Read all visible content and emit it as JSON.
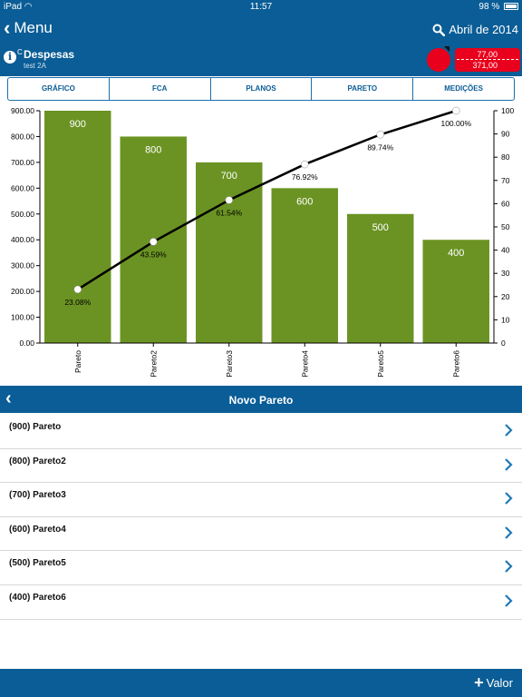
{
  "statusbar": {
    "device": "iPad",
    "time": "11:57",
    "battery": "98 %",
    "battery_level": 0.98
  },
  "nav": {
    "back_label": "Menu",
    "period": "Abril de 2014"
  },
  "header": {
    "code": "C",
    "title": "Despesas",
    "subtitle": "test 2A",
    "value_top": "77,00",
    "value_bottom": "371,00"
  },
  "tabs": [
    {
      "label": "GRÁFICO",
      "active": false
    },
    {
      "label": "FCA",
      "active": false
    },
    {
      "label": "PLANOS",
      "active": false
    },
    {
      "label": "PARETO",
      "active": true
    },
    {
      "label": "MEDIÇÕES",
      "active": false
    }
  ],
  "chart_data": {
    "type": "bar",
    "categories": [
      "Pareto",
      "Pareto2",
      "Pareto3",
      "Pareto4",
      "Pareto5",
      "Pareto6"
    ],
    "values": [
      900,
      800,
      700,
      600,
      500,
      400
    ],
    "cumulative_percent": [
      23.08,
      43.59,
      61.54,
      76.92,
      89.74,
      100.0
    ],
    "cumulative_labels": [
      "23.08%",
      "43.59%",
      "61.54%",
      "76.92%",
      "89.74%",
      "100.00%"
    ],
    "ylim": [
      0,
      900
    ],
    "y_ticks": [
      "0.00",
      "100.00",
      "200.00",
      "300.00",
      "400.00",
      "500.00",
      "600.00",
      "700.00",
      "800.00",
      "900.00"
    ],
    "y2lim": [
      0,
      100
    ],
    "y2_ticks": [
      "0",
      "10",
      "20",
      "30",
      "40",
      "50",
      "60",
      "70",
      "80",
      "90",
      "100"
    ],
    "grid": false,
    "bar_color": "#6b9323",
    "line_color": "#000000"
  },
  "list": {
    "title": "Novo Pareto",
    "items": [
      {
        "label": "(900) Pareto"
      },
      {
        "label": "(800) Pareto2"
      },
      {
        "label": "(700) Pareto3"
      },
      {
        "label": "(600) Pareto4"
      },
      {
        "label": "(500) Pareto5"
      },
      {
        "label": "(400) Pareto6"
      }
    ]
  },
  "bottom": {
    "add_label": "Valor"
  },
  "colors": {
    "primary": "#0a5d96",
    "alert": "#e8001c"
  }
}
